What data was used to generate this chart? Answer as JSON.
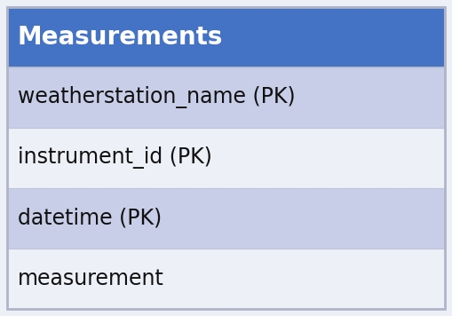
{
  "title": "Measurements",
  "title_bg_color": "#4472c4",
  "title_text_color": "#ffffff",
  "title_font_size": 20,
  "rows": [
    {
      "label": "weatherstation_name (PK)",
      "bg_color": "#c8cee8"
    },
    {
      "label": "instrument_id (PK)",
      "bg_color": "#eef0f8"
    },
    {
      "label": "datetime (PK)",
      "bg_color": "#c8cee8"
    },
    {
      "label": "measurement",
      "bg_color": "#eef0f8"
    }
  ],
  "row_font_size": 17,
  "row_text_color": "#111111",
  "separator_color": "#c0c4d8",
  "outer_border_color": "#b0b4c8",
  "fig_bg_color": "#eef0f8"
}
